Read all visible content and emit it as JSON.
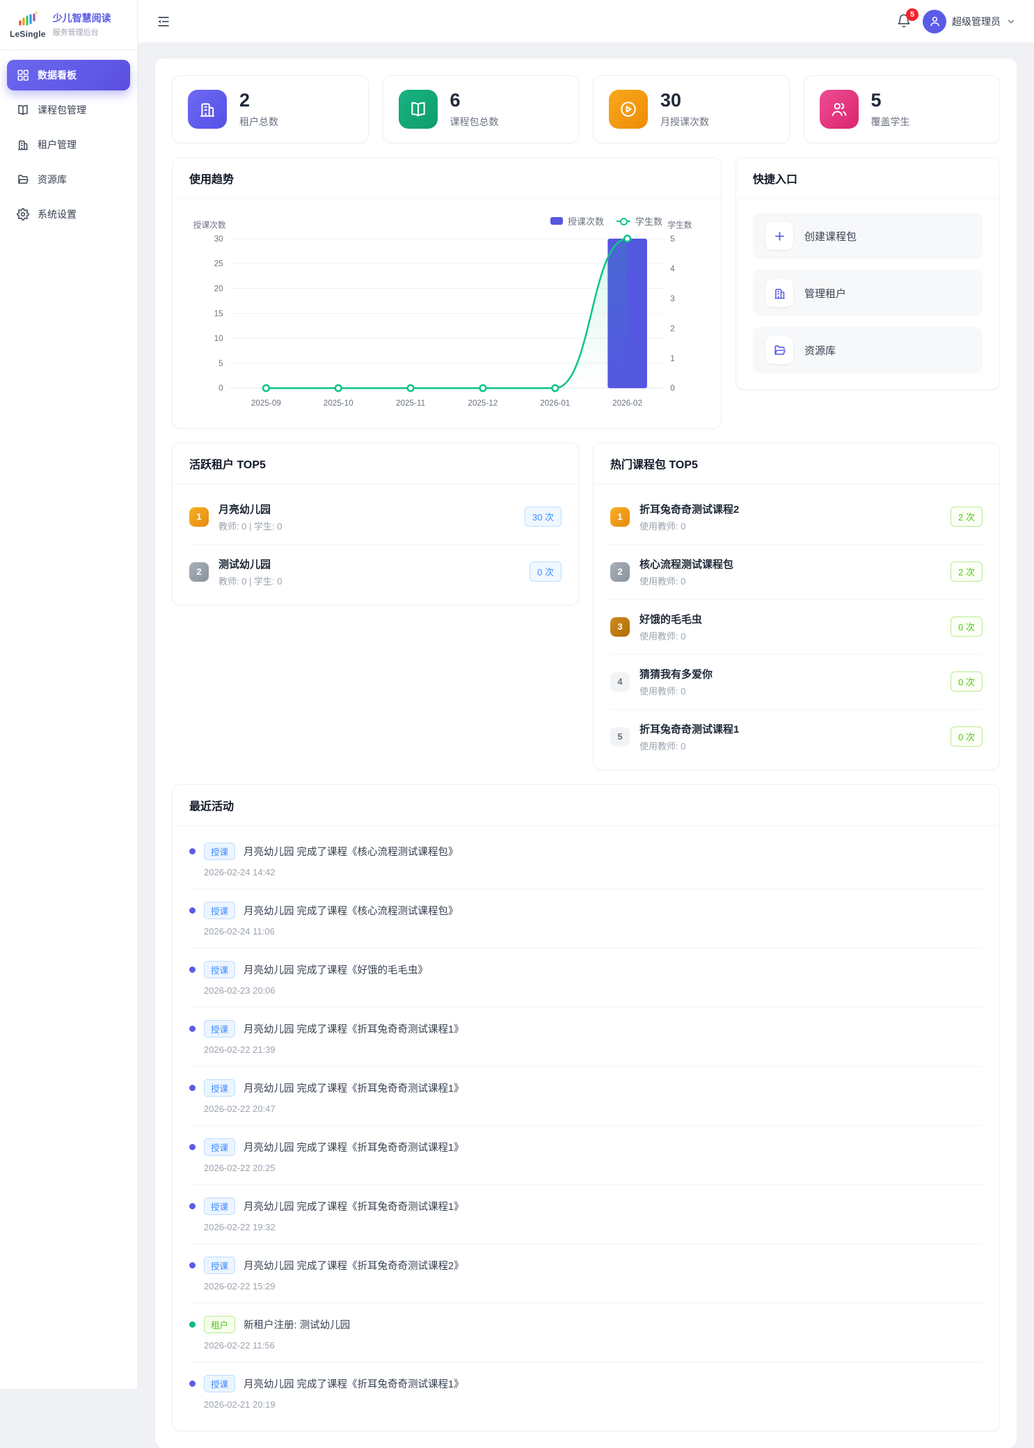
{
  "brand": {
    "logo_text": "LeSingle",
    "title": "少儿智慧阅读",
    "subtitle": "服务管理后台"
  },
  "sidebar": {
    "items": [
      {
        "label": "数据看板",
        "icon": "dashboard-grid-icon",
        "active": true
      },
      {
        "label": "课程包管理",
        "icon": "book-icon",
        "active": false
      },
      {
        "label": "租户管理",
        "icon": "building-icon",
        "active": false
      },
      {
        "label": "资源库",
        "icon": "folder-icon",
        "active": false
      },
      {
        "label": "系统设置",
        "icon": "gear-icon",
        "active": false
      }
    ]
  },
  "topbar": {
    "notification_count": "5",
    "user_name": "超级管理员",
    "icons": [
      "collapse-menu-icon",
      "bell-icon",
      "user-avatar-icon",
      "chevron-down-icon"
    ]
  },
  "stats": [
    {
      "value": "2",
      "label": "租户总数",
      "icon": "building-icon",
      "color": "#5b5ce6"
    },
    {
      "value": "6",
      "label": "课程包总数",
      "icon": "book-icon",
      "color": "#10a574"
    },
    {
      "value": "30",
      "label": "月授课次数",
      "icon": "play-circle-icon",
      "color": "#f29111"
    },
    {
      "value": "5",
      "label": "覆盖学生",
      "icon": "users-icon",
      "color": "#e23a80"
    }
  ],
  "usage_trend": {
    "title": "使用趋势"
  },
  "chart_data": {
    "type": "bar",
    "title": "使用趋势",
    "categories": [
      "2025-09",
      "2025-10",
      "2025-11",
      "2025-12",
      "2026-01",
      "2026-02"
    ],
    "series": [
      {
        "name": "授课次数",
        "type": "bar",
        "axis": "left",
        "values": [
          0,
          0,
          0,
          0,
          0,
          30
        ],
        "color": "#5457e0"
      },
      {
        "name": "学生数",
        "type": "line",
        "axis": "right",
        "values": [
          0,
          0,
          0,
          0,
          0,
          5
        ],
        "color": "#10c48c"
      }
    ],
    "left_axis": {
      "name": "授课次数",
      "min": 0,
      "max": 30,
      "ticks": [
        0,
        5,
        10,
        15,
        20,
        25,
        30
      ]
    },
    "right_axis": {
      "name": "学生数",
      "min": 0,
      "max": 5,
      "ticks": [
        0,
        1,
        2,
        3,
        4,
        5
      ]
    },
    "grid": true,
    "legend_position": "top-right"
  },
  "quick_access": {
    "title": "快捷入口",
    "items": [
      {
        "label": "创建课程包",
        "icon": "plus-icon"
      },
      {
        "label": "管理租户",
        "icon": "building-icon"
      },
      {
        "label": "资源库",
        "icon": "folder-icon"
      }
    ]
  },
  "active_tenants": {
    "title": "活跃租户 TOP5",
    "items": [
      {
        "rank": "1",
        "name": "月亮幼儿园",
        "sub": "教师: 0 | 学生: 0",
        "badge": "30 次"
      },
      {
        "rank": "2",
        "name": "测试幼儿园",
        "sub": "教师: 0 | 学生: 0",
        "badge": "0 次"
      }
    ]
  },
  "hot_packages": {
    "title": "热门课程包 TOP5",
    "items": [
      {
        "rank": "1",
        "name": "折耳兔奇奇测试课程2",
        "sub": "使用教师: 0",
        "badge": "2 次"
      },
      {
        "rank": "2",
        "name": "核心流程测试课程包",
        "sub": "使用教师: 0",
        "badge": "2 次"
      },
      {
        "rank": "3",
        "name": "好饿的毛毛虫",
        "sub": "使用教师: 0",
        "badge": "0 次"
      },
      {
        "rank": "4",
        "name": "猜猜我有多爱你",
        "sub": "使用教师: 0",
        "badge": "0 次"
      },
      {
        "rank": "5",
        "name": "折耳兔奇奇测试课程1",
        "sub": "使用教师: 0",
        "badge": "0 次"
      }
    ]
  },
  "recent_activities": {
    "title": "最近活动",
    "items": [
      {
        "type": "teach",
        "tag": "授课",
        "text": "月亮幼儿园 完成了课程《核心流程测试课程包》",
        "time": "2026-02-24 14:42"
      },
      {
        "type": "teach",
        "tag": "授课",
        "text": "月亮幼儿园 完成了课程《核心流程测试课程包》",
        "time": "2026-02-24 11:06"
      },
      {
        "type": "teach",
        "tag": "授课",
        "text": "月亮幼儿园 完成了课程《好饿的毛毛虫》",
        "time": "2026-02-23 20:06"
      },
      {
        "type": "teach",
        "tag": "授课",
        "text": "月亮幼儿园 完成了课程《折耳兔奇奇测试课程1》",
        "time": "2026-02-22 21:39"
      },
      {
        "type": "teach",
        "tag": "授课",
        "text": "月亮幼儿园 完成了课程《折耳兔奇奇测试课程1》",
        "time": "2026-02-22 20:47"
      },
      {
        "type": "teach",
        "tag": "授课",
        "text": "月亮幼儿园 完成了课程《折耳兔奇奇测试课程1》",
        "time": "2026-02-22 20:25"
      },
      {
        "type": "teach",
        "tag": "授课",
        "text": "月亮幼儿园 完成了课程《折耳兔奇奇测试课程1》",
        "time": "2026-02-22 19:32"
      },
      {
        "type": "teach",
        "tag": "授课",
        "text": "月亮幼儿园 完成了课程《折耳兔奇奇测试课程2》",
        "time": "2026-02-22 15:29"
      },
      {
        "type": "tenant",
        "tag": "租户",
        "text": "新租户注册: 测试幼儿园",
        "time": "2026-02-22 11:56"
      },
      {
        "type": "teach",
        "tag": "授课",
        "text": "月亮幼儿园 完成了课程《折耳兔奇奇测试课程1》",
        "time": "2026-02-21 20:19"
      }
    ]
  }
}
